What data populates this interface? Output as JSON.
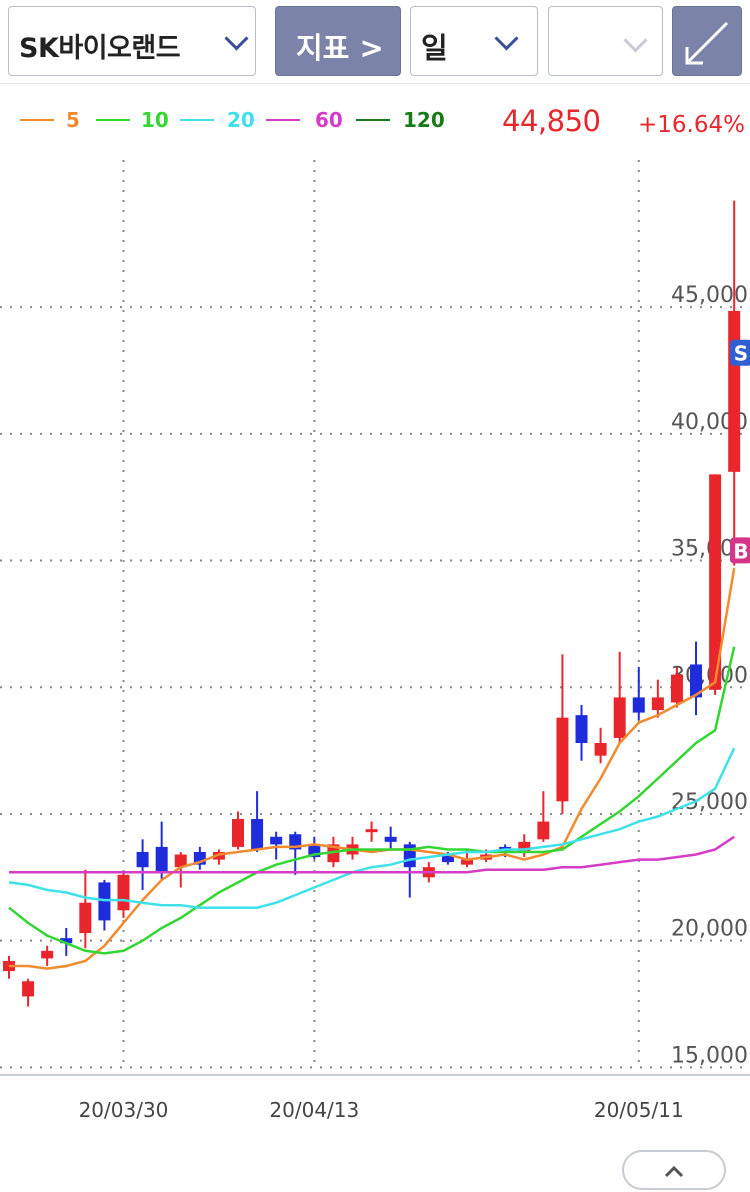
{
  "toolbar": {
    "stock_name": "SK바이오랜드",
    "indicator_label": "지표 >",
    "period_label": "일",
    "blank_select_value": "",
    "expand_icon": "expand-diagonal-arrow-icon"
  },
  "legend": {
    "items": [
      {
        "label": "5",
        "color": "#f28a30"
      },
      {
        "label": "10",
        "color": "#33d633"
      },
      {
        "label": "20",
        "color": "#3fe0e8"
      },
      {
        "label": "60",
        "color": "#d63cc6"
      },
      {
        "label": "120",
        "color": "#1a7a1a"
      }
    ],
    "price": "44,850",
    "change": "+16.64%"
  },
  "colors": {
    "up": "#e8262b",
    "down": "#1e2cdb",
    "grid": "#8a8a8a",
    "axis_text": "#555555"
  },
  "chart_data": {
    "type": "candlestick",
    "title": "",
    "y_ticks": [
      "45,000",
      "40,000",
      "35,000",
      "30,000",
      "25,000",
      "20,000",
      "15,000"
    ],
    "y_tick_values": [
      45000,
      40000,
      35000,
      30000,
      25000,
      20000,
      15000
    ],
    "ylim": [
      14700,
      51200
    ],
    "x_tick_labels": [
      {
        "label": "20/03/30",
        "index": 6
      },
      {
        "label": "20/04/13",
        "index": 16
      },
      {
        "label": "20/05/11",
        "index": 33
      }
    ],
    "n_slots": 39.3,
    "candles": [
      {
        "o": 18800,
        "c": 19200,
        "h": 19400,
        "l": 18500
      },
      {
        "o": 17800,
        "c": 18400,
        "h": 18500,
        "l": 17400
      },
      {
        "o": 19300,
        "c": 19600,
        "h": 19800,
        "l": 19000
      },
      {
        "o": 20100,
        "c": 19900,
        "h": 20500,
        "l": 19400
      },
      {
        "o": 20300,
        "c": 21500,
        "h": 22800,
        "l": 19700
      },
      {
        "o": 22300,
        "c": 20800,
        "h": 22400,
        "l": 20400
      },
      {
        "o": 21200,
        "c": 22600,
        "h": 22700,
        "l": 20900
      },
      {
        "o": 23500,
        "c": 22900,
        "h": 24000,
        "l": 22000
      },
      {
        "o": 23700,
        "c": 22700,
        "h": 24700,
        "l": 22400
      },
      {
        "o": 22900,
        "c": 23400,
        "h": 23500,
        "l": 22100
      },
      {
        "o": 23500,
        "c": 23000,
        "h": 23700,
        "l": 22800
      },
      {
        "o": 23200,
        "c": 23500,
        "h": 23600,
        "l": 23000
      },
      {
        "o": 23700,
        "c": 24800,
        "h": 25100,
        "l": 23600
      },
      {
        "o": 24800,
        "c": 23600,
        "h": 25900,
        "l": 23500
      },
      {
        "o": 24100,
        "c": 23800,
        "h": 24300,
        "l": 23200
      },
      {
        "o": 24200,
        "c": 23600,
        "h": 24300,
        "l": 22600
      },
      {
        "o": 23800,
        "c": 23300,
        "h": 24100,
        "l": 23200
      },
      {
        "o": 23100,
        "c": 23800,
        "h": 24100,
        "l": 22900
      },
      {
        "o": 23400,
        "c": 23800,
        "h": 24100,
        "l": 23200
      },
      {
        "o": 24300,
        "c": 24400,
        "h": 24700,
        "l": 23900
      },
      {
        "o": 24100,
        "c": 23900,
        "h": 24500,
        "l": 23600
      },
      {
        "o": 23800,
        "c": 22900,
        "h": 23900,
        "l": 21700
      },
      {
        "o": 22500,
        "c": 22900,
        "h": 23100,
        "l": 22300
      },
      {
        "o": 23400,
        "c": 23100,
        "h": 23500,
        "l": 23000
      },
      {
        "o": 23000,
        "c": 23200,
        "h": 23600,
        "l": 22900
      },
      {
        "o": 23200,
        "c": 23400,
        "h": 23600,
        "l": 23100
      },
      {
        "o": 23700,
        "c": 23500,
        "h": 23800,
        "l": 23300
      },
      {
        "o": 23500,
        "c": 23900,
        "h": 24200,
        "l": 23300
      },
      {
        "o": 24000,
        "c": 24700,
        "h": 25900,
        "l": 23900
      },
      {
        "o": 25500,
        "c": 28800,
        "h": 31300,
        "l": 25000
      },
      {
        "o": 28900,
        "c": 27800,
        "h": 29300,
        "l": 27100
      },
      {
        "o": 27300,
        "c": 27800,
        "h": 28400,
        "l": 27000
      },
      {
        "o": 28000,
        "c": 29600,
        "h": 31400,
        "l": 27800
      },
      {
        "o": 29600,
        "c": 29000,
        "h": 30800,
        "l": 28700
      },
      {
        "o": 29100,
        "c": 29600,
        "h": 30300,
        "l": 28800
      },
      {
        "o": 29400,
        "c": 30500,
        "h": 30800,
        "l": 29200
      },
      {
        "o": 30900,
        "c": 29600,
        "h": 31800,
        "l": 28900
      },
      {
        "o": 29900,
        "c": 38400,
        "h": 38400,
        "l": 29700
      },
      {
        "o": 38500,
        "c": 44850,
        "h": 49200,
        "l": 34800
      }
    ],
    "ma_series": [
      {
        "name": "5",
        "color": "#f28a30",
        "values": [
          19000,
          19000,
          18900,
          19000,
          19200,
          19800,
          20700,
          21600,
          22400,
          22900,
          23100,
          23400,
          23500,
          23600,
          23700,
          23700,
          23800,
          23700,
          23600,
          23500,
          23600,
          23600,
          23500,
          23400,
          23200,
          23300,
          23400,
          23200,
          23400,
          23700,
          25200,
          26400,
          27800,
          28600,
          28900,
          29300,
          29700,
          30200,
          34700
        ]
      },
      {
        "name": "10",
        "color": "#33d633",
        "values": [
          21300,
          20700,
          20200,
          19900,
          19600,
          19500,
          19600,
          20000,
          20500,
          20900,
          21400,
          21900,
          22300,
          22700,
          23000,
          23200,
          23400,
          23500,
          23600,
          23600,
          23600,
          23600,
          23700,
          23600,
          23600,
          23500,
          23500,
          23500,
          23500,
          23600,
          24100,
          24600,
          25100,
          25700,
          26400,
          27100,
          27800,
          28300,
          31600
        ]
      },
      {
        "name": "20",
        "color": "#3fe0e8",
        "values": [
          22300,
          22200,
          22000,
          21900,
          21700,
          21600,
          21600,
          21500,
          21400,
          21400,
          21300,
          21300,
          21300,
          21300,
          21500,
          21800,
          22100,
          22400,
          22700,
          22900,
          23000,
          23200,
          23300,
          23400,
          23500,
          23500,
          23600,
          23600,
          23700,
          23800,
          24000,
          24200,
          24400,
          24700,
          24900,
          25200,
          25500,
          26000,
          27600
        ]
      },
      {
        "name": "60",
        "color": "#d63cc6",
        "values": [
          22700,
          22700,
          22700,
          22700,
          22700,
          22700,
          22700,
          22700,
          22700,
          22700,
          22700,
          22700,
          22700,
          22700,
          22700,
          22700,
          22700,
          22700,
          22700,
          22700,
          22700,
          22700,
          22700,
          22700,
          22700,
          22800,
          22800,
          22800,
          22800,
          22900,
          22900,
          23000,
          23100,
          23200,
          23200,
          23300,
          23400,
          23600,
          24100
        ]
      }
    ],
    "signals": [
      {
        "label": "S",
        "color": "#2f5fd0",
        "price": 43200
      },
      {
        "label": "B",
        "color": "#d6338a",
        "price": 35400
      }
    ],
    "grid": true
  }
}
